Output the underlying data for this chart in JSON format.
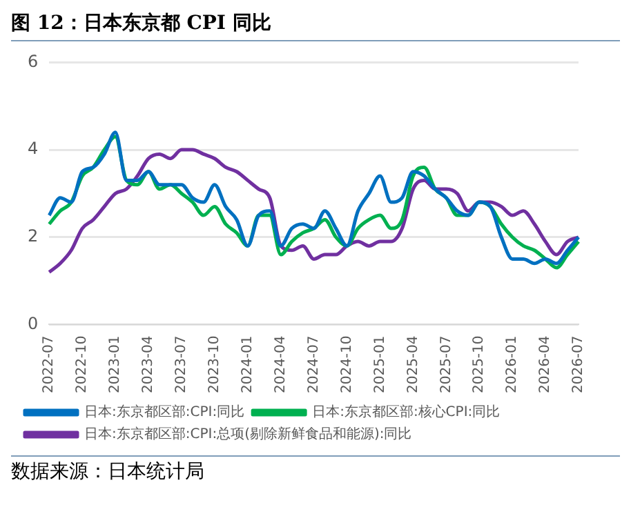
{
  "chart_data": {
    "type": "line",
    "title": "图 12：日本东京都 CPI 同比",
    "categories": [
      "2022-07",
      null,
      null,
      "2022-10",
      null,
      null,
      "2023-01",
      null,
      null,
      "2023-04",
      null,
      null,
      "2023-07",
      null,
      null,
      "2023-10",
      null,
      null,
      "2024-01",
      null,
      null,
      "2024-04",
      null,
      null,
      "2024-07",
      null,
      null,
      "2024-10",
      null,
      null,
      "2025-01",
      null,
      null,
      "2025-04",
      null,
      null,
      "2025-07",
      null,
      null,
      "2025-10",
      null,
      null,
      "2026-01",
      null,
      null,
      "2026-04",
      null,
      null,
      "2026-07"
    ],
    "series": [
      {
        "name": "日本:东京都区部:CPI:同比",
        "color": "#0070c0",
        "values": [
          2.5,
          2.9,
          2.8,
          3.5,
          3.6,
          3.9,
          4.4,
          3.3,
          3.3,
          3.5,
          3.2,
          3.2,
          3.2,
          2.9,
          2.8,
          3.2,
          2.7,
          2.4,
          1.8,
          2.5,
          2.6,
          1.8,
          2.2,
          2.3,
          2.2,
          2.6,
          2.2,
          1.8,
          2.6,
          3.0,
          3.4,
          2.8,
          2.9,
          3.5,
          3.4,
          3.1,
          2.9,
          2.6,
          2.5,
          2.8,
          2.7,
          2.0,
          1.5,
          1.5,
          1.4,
          1.5,
          1.4,
          1.7,
          2.0
        ]
      },
      {
        "name": "日本:东京都区部:核心CPI:同比",
        "color": "#00b050",
        "values": [
          2.3,
          2.6,
          2.8,
          3.4,
          3.6,
          4.0,
          4.3,
          3.3,
          3.2,
          3.5,
          3.1,
          3.2,
          3.0,
          2.8,
          2.5,
          2.7,
          2.3,
          2.1,
          1.8,
          2.5,
          2.5,
          1.6,
          1.9,
          2.1,
          2.2,
          2.4,
          2.0,
          1.8,
          2.2,
          2.4,
          2.5,
          2.2,
          2.4,
          3.4,
          3.6,
          3.1,
          2.9,
          2.5,
          2.5,
          2.8,
          2.7,
          2.3,
          2.0,
          1.8,
          1.7,
          1.5,
          1.3,
          1.6,
          1.9
        ]
      },
      {
        "name": "日本:东京都区部:CPI:总项(剔除新鲜食品和能源):同比",
        "color": "#7030a0",
        "values": [
          1.2,
          1.4,
          1.7,
          2.2,
          2.4,
          2.7,
          3.0,
          3.1,
          3.4,
          3.8,
          3.9,
          3.8,
          4.0,
          4.0,
          3.9,
          3.8,
          3.6,
          3.5,
          3.3,
          3.1,
          2.9,
          1.8,
          1.7,
          1.8,
          1.5,
          1.6,
          1.6,
          1.8,
          1.9,
          1.8,
          1.9,
          1.9,
          2.2,
          3.1,
          3.3,
          3.1,
          3.1,
          3.0,
          2.6,
          2.8,
          2.8,
          2.7,
          2.5,
          2.6,
          2.3,
          1.9,
          1.6,
          1.9,
          2.0
        ]
      }
    ],
    "ylim": [
      0,
      6
    ],
    "yticks": [
      0,
      2,
      4,
      6
    ],
    "grid": "y",
    "legend": "bottom",
    "annotations": [
      "数据来源：日本统计局"
    ]
  }
}
